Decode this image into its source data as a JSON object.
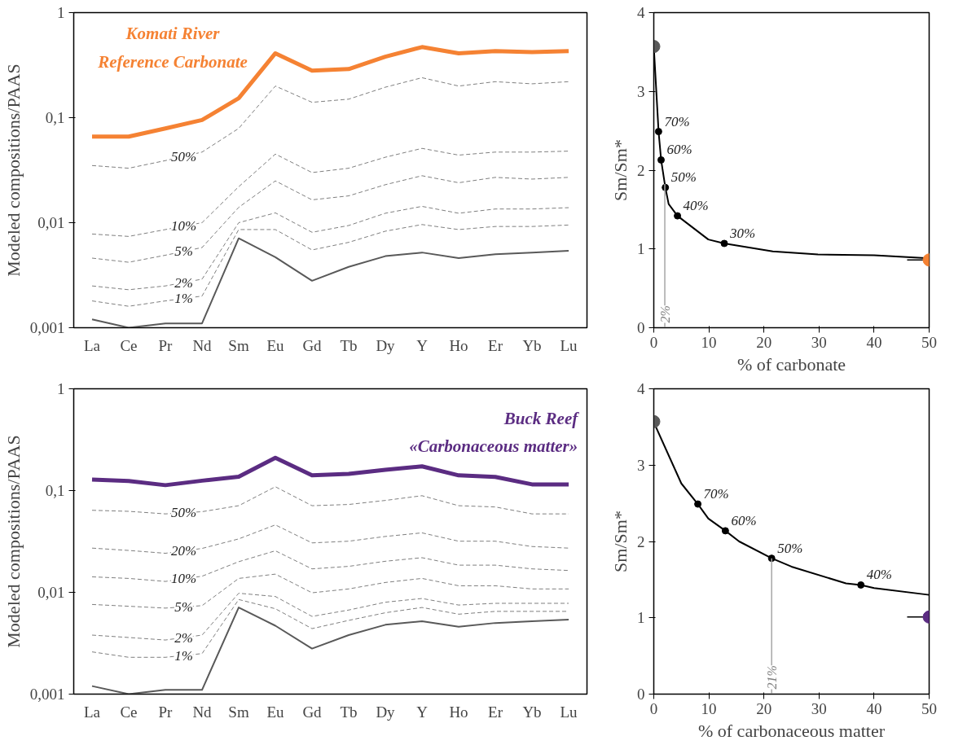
{
  "chart_data": [
    {
      "type": "line",
      "log": "y",
      "legend": "top left",
      "ylabel": "Modeled compositions/PAAS",
      "categories": [
        "La",
        "Ce",
        "Pr",
        "Nd",
        "Sm",
        "Eu",
        "Gd",
        "Tb",
        "Dy",
        "Y",
        "Ho",
        "Er",
        "Yb",
        "Lu"
      ],
      "ylim": [
        0.001,
        1
      ],
      "yticks": [
        {
          "value": 0.001,
          "label": "0,001"
        },
        {
          "value": 0.01,
          "label": "0,01"
        },
        {
          "value": 0.1,
          "label": "0,1"
        },
        {
          "value": 1,
          "label": "1"
        }
      ],
      "series": [
        {
          "name": "Komati River\nReference Carbonate",
          "color": "#f58233",
          "line_style": "solid",
          "values": [
            0.066,
            0.066,
            0.079,
            0.095,
            0.153,
            0.41,
            0.28,
            0.29,
            0.38,
            0.47,
            0.41,
            0.43,
            0.42,
            0.43
          ]
        },
        {
          "name": "50%",
          "color": "#7f7f7f",
          "line_style": "dashed",
          "values": [
            0.035,
            0.033,
            0.039,
            0.047,
            0.079,
            0.2,
            0.14,
            0.15,
            0.195,
            0.24,
            0.2,
            0.22,
            0.21,
            0.22
          ]
        },
        {
          "name": "10%",
          "color": "#7f7f7f",
          "line_style": "dashed",
          "values": [
            0.0078,
            0.0074,
            0.0086,
            0.01,
            0.022,
            0.045,
            0.03,
            0.033,
            0.042,
            0.051,
            0.044,
            0.047,
            0.047,
            0.048
          ]
        },
        {
          "name": "5%",
          "color": "#7f7f7f",
          "line_style": "dashed",
          "values": [
            0.0046,
            0.0042,
            0.0049,
            0.0058,
            0.014,
            0.025,
            0.0165,
            0.018,
            0.023,
            0.028,
            0.024,
            0.027,
            0.026,
            0.027
          ]
        },
        {
          "name": "2%",
          "color": "#7f7f7f",
          "line_style": "dashed",
          "values": [
            0.0025,
            0.0023,
            0.0025,
            0.0029,
            0.01,
            0.0124,
            0.0081,
            0.0094,
            0.0123,
            0.0143,
            0.0123,
            0.0135,
            0.0135,
            0.0139
          ]
        },
        {
          "name": "1%",
          "color": "#7f7f7f",
          "line_style": "dashed",
          "values": [
            0.0018,
            0.0016,
            0.0018,
            0.002,
            0.0086,
            0.0086,
            0.0055,
            0.0065,
            0.0083,
            0.0096,
            0.0086,
            0.0092,
            0.0092,
            0.0095
          ]
        },
        {
          "color": "#595959",
          "line_style": "solid",
          "values": [
            0.0012,
            0.001,
            0.0011,
            0.0011,
            0.0071,
            0.0047,
            0.0028,
            0.0038,
            0.0048,
            0.0052,
            0.0046,
            0.005,
            0.0052,
            0.0054
          ]
        }
      ]
    },
    {
      "type": "scatter",
      "xlabel": "% of carbonate",
      "ylabel": "Sm/Sm*",
      "xlim": [
        0,
        50
      ],
      "xticks": [
        0,
        10,
        20,
        30,
        40,
        50
      ],
      "ylim": [
        0,
        4
      ],
      "yticks": [
        0,
        1,
        2,
        3,
        4
      ],
      "ref_lines": [
        {
          "axis": "x",
          "value": 2,
          "label": "2%",
          "color": "#a6a6a6"
        }
      ],
      "annotations": [
        {
          "text": "70%",
          "x": 0.87,
          "y": 2.49
        },
        {
          "text": "60%",
          "x": 1.33,
          "y": 2.13
        },
        {
          "text": "50%",
          "x": 2.1,
          "y": 1.78
        },
        {
          "text": "40%",
          "x": 4.3,
          "y": 1.42
        },
        {
          "text": "30%",
          "x": 12.8,
          "y": 1.07
        }
      ],
      "series": [
        {
          "type": "line",
          "color": "#000000",
          "x": [
            0,
            0.87,
            1.33,
            2.1,
            2.7,
            4.3,
            9.9,
            12.8,
            21.6,
            29.8,
            40,
            50
          ],
          "values": [
            3.57,
            2.49,
            2.13,
            1.78,
            1.57,
            1.42,
            1.12,
            1.07,
            0.97,
            0.93,
            0.92,
            0.88
          ]
        },
        {
          "type": "scatter",
          "color": "#000000",
          "x": [
            0.87,
            1.33,
            2.1,
            4.3,
            12.8
          ],
          "values": [
            2.49,
            2.13,
            1.78,
            1.42,
            1.07
          ]
        },
        {
          "type": "scatter",
          "color": "#595959",
          "x": [
            0
          ],
          "values": [
            3.57
          ]
        },
        {
          "type": "scatter",
          "color": "#f58233",
          "x": [
            50
          ],
          "values": [
            0.86
          ],
          "xerrors": [
            [
              46,
              50
            ]
          ]
        }
      ]
    },
    {
      "type": "line",
      "log": "y",
      "legend": "top right",
      "ylabel": "Modeled compositions/PAAS",
      "categories": [
        "La",
        "Ce",
        "Pr",
        "Nd",
        "Sm",
        "Eu",
        "Gd",
        "Tb",
        "Dy",
        "Y",
        "Ho",
        "Er",
        "Yb",
        "Lu"
      ],
      "ylim": [
        0.001,
        1
      ],
      "yticks": [
        {
          "value": 0.001,
          "label": "0,001"
        },
        {
          "value": 0.01,
          "label": "0,01"
        },
        {
          "value": 0.1,
          "label": "0,1"
        },
        {
          "value": 1,
          "label": "1"
        }
      ],
      "series": [
        {
          "name": "Buck Reef\n«Carbonaceous matter»",
          "color": "#5b2c82",
          "line_style": "solid",
          "values": [
            0.128,
            0.124,
            0.113,
            0.125,
            0.137,
            0.21,
            0.141,
            0.146,
            0.16,
            0.173,
            0.141,
            0.136,
            0.115,
            0.115
          ]
        },
        {
          "name": "50%",
          "color": "#7f7f7f",
          "line_style": "dashed",
          "values": [
            0.064,
            0.0625,
            0.059,
            0.062,
            0.071,
            0.109,
            0.071,
            0.073,
            0.08,
            0.089,
            0.071,
            0.069,
            0.059,
            0.059
          ]
        },
        {
          "name": "20%",
          "color": "#7f7f7f",
          "line_style": "dashed",
          "values": [
            0.0272,
            0.0258,
            0.0242,
            0.027,
            0.0335,
            0.046,
            0.0306,
            0.0318,
            0.0354,
            0.0384,
            0.0318,
            0.0318,
            0.0282,
            0.0272
          ]
        },
        {
          "name": "10%",
          "color": "#7f7f7f",
          "line_style": "dashed",
          "values": [
            0.0142,
            0.0137,
            0.0128,
            0.0144,
            0.02,
            0.0256,
            0.017,
            0.018,
            0.0202,
            0.0219,
            0.0185,
            0.0185,
            0.017,
            0.0164
          ]
        },
        {
          "name": "5%",
          "color": "#7f7f7f",
          "line_style": "dashed",
          "values": [
            0.0076,
            0.0073,
            0.007,
            0.0074,
            0.0137,
            0.0151,
            0.0099,
            0.0108,
            0.0125,
            0.0137,
            0.0116,
            0.0116,
            0.0108,
            0.0108
          ]
        },
        {
          "name": "2%",
          "color": "#7f7f7f",
          "line_style": "dashed",
          "values": [
            0.0038,
            0.0036,
            0.0034,
            0.0038,
            0.0098,
            0.0091,
            0.0058,
            0.0067,
            0.008,
            0.0087,
            0.0075,
            0.0078,
            0.0078,
            0.0078
          ]
        },
        {
          "name": "1%",
          "color": "#7f7f7f",
          "line_style": "dashed",
          "values": [
            0.0026,
            0.0023,
            0.0023,
            0.0025,
            0.0085,
            0.0069,
            0.0044,
            0.0053,
            0.0063,
            0.0071,
            0.0061,
            0.0065,
            0.0065,
            0.0065
          ]
        },
        {
          "color": "#595959",
          "line_style": "solid",
          "values": [
            0.0012,
            0.001,
            0.0011,
            0.0011,
            0.0071,
            0.0047,
            0.0028,
            0.0038,
            0.0048,
            0.0052,
            0.0046,
            0.005,
            0.0052,
            0.0054
          ]
        }
      ]
    },
    {
      "type": "scatter",
      "xlabel": "% of carbonaceous matter",
      "ylabel": "Sm/Sm*",
      "xlim": [
        0,
        50
      ],
      "xticks": [
        0,
        10,
        20,
        30,
        40,
        50
      ],
      "ylim": [
        0,
        4
      ],
      "yticks": [
        0,
        1,
        2,
        3,
        4
      ],
      "ref_lines": [
        {
          "axis": "x",
          "value": 21.4,
          "label": "21%",
          "color": "#a6a6a6"
        }
      ],
      "annotations": [
        {
          "text": "70%",
          "x": 8,
          "y": 2.49
        },
        {
          "text": "60%",
          "x": 13,
          "y": 2.14
        },
        {
          "text": "50%",
          "x": 21.4,
          "y": 1.78
        },
        {
          "text": "40%",
          "x": 37.6,
          "y": 1.43
        }
      ],
      "series": [
        {
          "type": "line",
          "color": "#000000",
          "x": [
            0,
            5,
            8,
            9.9,
            13,
            15.5,
            21.4,
            25,
            34.9,
            37.6,
            40,
            50
          ],
          "values": [
            3.56,
            2.76,
            2.49,
            2.3,
            2.14,
            2,
            1.78,
            1.67,
            1.45,
            1.43,
            1.39,
            1.3
          ]
        },
        {
          "type": "scatter",
          "color": "#000000",
          "x": [
            8,
            13,
            21.4,
            37.6
          ],
          "values": [
            2.49,
            2.14,
            1.78,
            1.43
          ]
        },
        {
          "type": "scatter",
          "color": "#595959",
          "x": [
            0
          ],
          "values": [
            3.57
          ]
        },
        {
          "type": "scatter",
          "color": "#5b2c82",
          "x": [
            50
          ],
          "values": [
            1.01
          ],
          "xerrors": [
            [
              46,
              50
            ]
          ]
        }
      ]
    }
  ]
}
